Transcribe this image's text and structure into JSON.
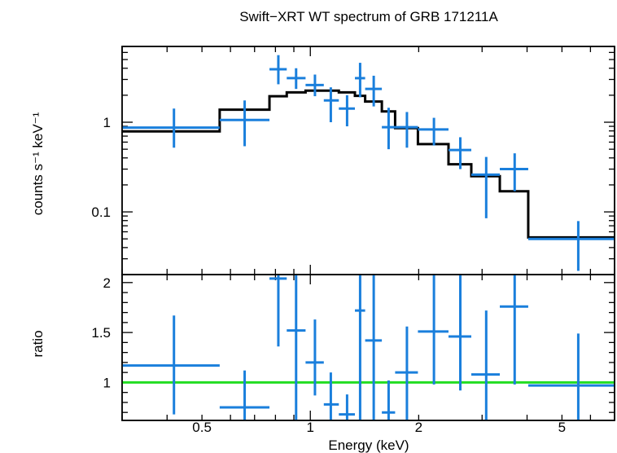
{
  "chart_data": [
    {
      "type": "line",
      "panel": "spectrum",
      "title": "Swift−XRT WT spectrum of GRB 171211A",
      "ylabel": "counts s⁻¹ keV⁻¹",
      "xlabel": "Energy (keV)",
      "x_scale": "log",
      "y_scale": "log",
      "xlim": [
        0.3,
        7.0
      ],
      "ylim": [
        0.02,
        7.0
      ],
      "x_tick_labels": [
        "0.5",
        "1",
        "2",
        "5"
      ],
      "y_tick_labels": [
        "0.1",
        "1"
      ],
      "grid": false,
      "colors": {
        "data": "#1a7fdc",
        "model": "#000000",
        "reference": "#22dd22"
      },
      "series": [
        {
          "role": "data",
          "points": [
            {
              "x": 0.418,
              "xlo": 0.3,
              "xhi": 0.56,
              "y": 0.87,
              "ylo": 0.52,
              "yhi": 1.42
            },
            {
              "x": 0.657,
              "xlo": 0.56,
              "xhi": 0.77,
              "y": 1.06,
              "ylo": 0.54,
              "yhi": 1.75
            },
            {
              "x": 0.815,
              "xlo": 0.77,
              "xhi": 0.86,
              "y": 3.9,
              "ylo": 2.65,
              "yhi": 5.6
            },
            {
              "x": 0.913,
              "xlo": 0.86,
              "xhi": 0.97,
              "y": 3.1,
              "ylo": 2.35,
              "yhi": 4.0
            },
            {
              "x": 1.03,
              "xlo": 0.97,
              "xhi": 1.09,
              "y": 2.6,
              "ylo": 1.95,
              "yhi": 3.4
            },
            {
              "x": 1.14,
              "xlo": 1.09,
              "xhi": 1.2,
              "y": 1.75,
              "ylo": 1.0,
              "yhi": 2.45
            },
            {
              "x": 1.265,
              "xlo": 1.2,
              "xhi": 1.33,
              "y": 1.42,
              "ylo": 0.9,
              "yhi": 2.0
            },
            {
              "x": 1.375,
              "xlo": 1.33,
              "xhi": 1.42,
              "y": 3.1,
              "ylo": 1.9,
              "yhi": 4.6
            },
            {
              "x": 1.5,
              "xlo": 1.42,
              "xhi": 1.58,
              "y": 2.35,
              "ylo": 1.5,
              "yhi": 3.3
            },
            {
              "x": 1.65,
              "xlo": 1.58,
              "xhi": 1.72,
              "y": 0.88,
              "ylo": 0.5,
              "yhi": 1.45
            },
            {
              "x": 1.855,
              "xlo": 1.72,
              "xhi": 1.99,
              "y": 0.88,
              "ylo": 0.52,
              "yhi": 1.3
            },
            {
              "x": 2.205,
              "xlo": 1.99,
              "xhi": 2.42,
              "y": 0.83,
              "ylo": 0.55,
              "yhi": 1.12
            },
            {
              "x": 2.61,
              "xlo": 2.42,
              "xhi": 2.8,
              "y": 0.49,
              "ylo": 0.3,
              "yhi": 0.68
            },
            {
              "x": 3.08,
              "xlo": 2.8,
              "xhi": 3.36,
              "y": 0.26,
              "ylo": 0.085,
              "yhi": 0.41
            },
            {
              "x": 3.695,
              "xlo": 3.36,
              "xhi": 4.03,
              "y": 0.3,
              "ylo": 0.17,
              "yhi": 0.45
            },
            {
              "x": 5.55,
              "xlo": 4.03,
              "xhi": 7.0,
              "y": 0.05,
              "ylo": 0.022,
              "yhi": 0.079
            }
          ]
        },
        {
          "role": "model",
          "steps": [
            {
              "xlo": 0.3,
              "xhi": 0.56,
              "y": 0.79
            },
            {
              "xlo": 0.56,
              "xhi": 0.77,
              "y": 1.38
            },
            {
              "xlo": 0.77,
              "xhi": 0.86,
              "y": 1.95
            },
            {
              "xlo": 0.86,
              "xhi": 0.97,
              "y": 2.15
            },
            {
              "xlo": 0.97,
              "xhi": 1.2,
              "y": 2.25
            },
            {
              "xlo": 1.2,
              "xhi": 1.33,
              "y": 2.15
            },
            {
              "xlo": 1.33,
              "xhi": 1.42,
              "y": 1.97
            },
            {
              "xlo": 1.42,
              "xhi": 1.58,
              "y": 1.7
            },
            {
              "xlo": 1.58,
              "xhi": 1.72,
              "y": 1.32
            },
            {
              "xlo": 1.72,
              "xhi": 1.99,
              "y": 0.86
            },
            {
              "xlo": 1.99,
              "xhi": 2.42,
              "y": 0.57
            },
            {
              "xlo": 2.42,
              "xhi": 2.8,
              "y": 0.34
            },
            {
              "xlo": 2.8,
              "xhi": 3.36,
              "y": 0.25
            },
            {
              "xlo": 3.36,
              "xhi": 4.03,
              "y": 0.17
            },
            {
              "xlo": 4.03,
              "xhi": 7.0,
              "y": 0.052
            }
          ]
        }
      ]
    },
    {
      "type": "scatter",
      "panel": "ratio",
      "ylabel": "ratio",
      "xlabel": "Energy (keV)",
      "x_scale": "log",
      "y_scale": "linear",
      "xlim": [
        0.3,
        7.0
      ],
      "ylim": [
        0.62,
        2.08
      ],
      "x_tick_labels": [
        "0.5",
        "1",
        "2",
        "5"
      ],
      "y_tick_labels": [
        "1",
        "1.5",
        "2"
      ],
      "reference_line": 1.0,
      "series": [
        {
          "role": "data",
          "points": [
            {
              "x": 0.418,
              "xlo": 0.3,
              "xhi": 0.56,
              "y": 1.17,
              "ylo": 0.68,
              "yhi": 1.67
            },
            {
              "x": 0.657,
              "xlo": 0.56,
              "xhi": 0.77,
              "y": 0.75,
              "ylo": 0.62,
              "yhi": 1.12
            },
            {
              "x": 0.815,
              "xlo": 0.77,
              "xhi": 0.86,
              "y": 2.04,
              "ylo": 1.36,
              "yhi": 2.08
            },
            {
              "x": 0.913,
              "xlo": 0.86,
              "xhi": 0.97,
              "y": 1.52,
              "ylo": 0.62,
              "yhi": 2.08
            },
            {
              "x": 1.03,
              "xlo": 0.97,
              "xhi": 1.09,
              "y": 1.2,
              "ylo": 0.87,
              "yhi": 1.63
            },
            {
              "x": 1.14,
              "xlo": 1.09,
              "xhi": 1.2,
              "y": 0.78,
              "ylo": 0.62,
              "yhi": 1.1
            },
            {
              "x": 1.265,
              "xlo": 1.2,
              "xhi": 1.33,
              "y": 0.68,
              "ylo": 0.62,
              "yhi": 0.88
            },
            {
              "x": 1.375,
              "xlo": 1.33,
              "xhi": 1.42,
              "y": 1.72,
              "ylo": 0.62,
              "yhi": 2.08
            },
            {
              "x": 1.5,
              "xlo": 1.42,
              "xhi": 1.58,
              "y": 1.42,
              "ylo": 0.62,
              "yhi": 2.08
            },
            {
              "x": 1.65,
              "xlo": 1.58,
              "xhi": 1.72,
              "y": 0.7,
              "ylo": 0.62,
              "yhi": 1.02
            },
            {
              "x": 1.855,
              "xlo": 1.72,
              "xhi": 1.99,
              "y": 1.1,
              "ylo": 0.62,
              "yhi": 1.56
            },
            {
              "x": 2.205,
              "xlo": 1.99,
              "xhi": 2.42,
              "y": 1.51,
              "ylo": 0.98,
              "yhi": 2.08
            },
            {
              "x": 2.61,
              "xlo": 2.42,
              "xhi": 2.8,
              "y": 1.46,
              "ylo": 0.92,
              "yhi": 2.08
            },
            {
              "x": 3.08,
              "xlo": 2.8,
              "xhi": 3.36,
              "y": 1.08,
              "ylo": 0.62,
              "yhi": 1.72
            },
            {
              "x": 3.695,
              "xlo": 3.36,
              "xhi": 4.03,
              "y": 1.76,
              "ylo": 0.98,
              "yhi": 2.08
            },
            {
              "x": 5.55,
              "xlo": 4.03,
              "xhi": 7.0,
              "y": 0.97,
              "ylo": 0.62,
              "yhi": 1.49
            }
          ]
        }
      ]
    }
  ]
}
